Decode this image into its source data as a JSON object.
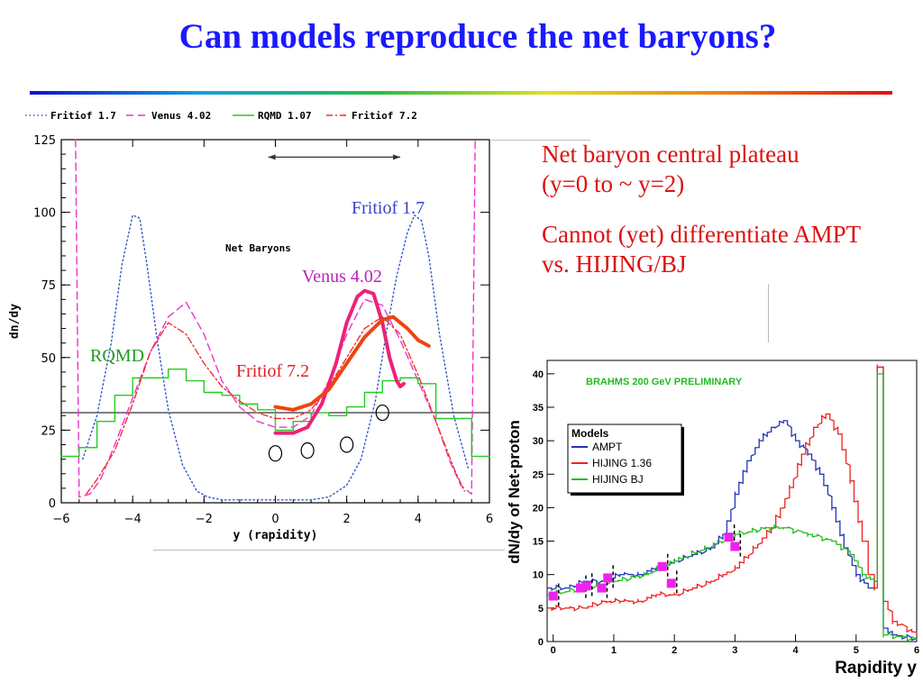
{
  "title": "Can models reproduce the net baryons?",
  "notes": [
    "Net  baryon central plateau (y=0 to ~ y=2)",
    "Cannot (yet) differentiate AMPT vs. HIJING/BJ"
  ],
  "colors": {
    "title": "#1a1aff",
    "notes": "#dd1111"
  },
  "chart_data": [
    {
      "type": "line",
      "title": "Net Baryons",
      "xlabel": "y  (rapidity)",
      "ylabel": "dn/dy",
      "xlim": [
        -6,
        6
      ],
      "ylim": [
        0,
        125
      ],
      "xticks": [
        "-6",
        "-4",
        "-2",
        "0",
        "2",
        "4",
        "6"
      ],
      "yticks": [
        "0",
        "25",
        "50",
        "75",
        "100",
        "125"
      ],
      "legend_position": "top",
      "legend": [
        {
          "name": "Fritiof 1.7",
          "color": "#3355cc",
          "style": "dotted"
        },
        {
          "name": "Venus 4.02",
          "color": "#ee33cc",
          "style": "dashed"
        },
        {
          "name": "RQMD 1.07",
          "color": "#22cc22",
          "style": "solid"
        },
        {
          "name": "Fritiof 7.2",
          "color": "#ee3333",
          "style": "dashdot"
        }
      ],
      "annotations": [
        {
          "text": "Fritiof 1.7",
          "color": "#3344cc"
        },
        {
          "text": "Venus 4.02",
          "color": "#bb22bb"
        },
        {
          "text": "RQMD",
          "color": "#229922"
        },
        {
          "text": "Fritiof 7.2",
          "color": "#dd2222"
        }
      ],
      "arrow_range": [
        -0.2,
        3.5
      ],
      "reference_level": 31,
      "series": [
        {
          "name": "Fritiof 1.7",
          "color": "#3355cc",
          "style": "dotted",
          "x": [
            -5.4,
            -5.0,
            -4.6,
            -4.3,
            -4.0,
            -3.8,
            -3.6,
            -3.3,
            -3.0,
            -2.6,
            -2.2,
            -1.9,
            -1.5,
            -1.0,
            -0.5,
            0,
            0.5,
            1.0,
            1.5,
            2.0,
            2.4,
            2.8,
            3.1,
            3.4,
            3.7,
            3.9,
            4.1,
            4.3,
            4.6,
            5.0,
            5.4
          ],
          "y": [
            15,
            30,
            55,
            82,
            99,
            98,
            82,
            55,
            32,
            13,
            4,
            2,
            1,
            1,
            1,
            1,
            1,
            1,
            2,
            6,
            15,
            35,
            58,
            78,
            93,
            99,
            97,
            85,
            58,
            30,
            12
          ]
        },
        {
          "name": "Venus 4.02",
          "color": "#ee33cc",
          "style": "dashed",
          "x": [
            -5.6,
            -5.5,
            -5.2,
            -4.9,
            -4.5,
            -4.0,
            -3.5,
            -3.0,
            -2.5,
            -2.0,
            -1.5,
            -1.0,
            -0.5,
            0,
            0.5,
            1.0,
            1.5,
            2.0,
            2.5,
            3.0,
            3.5,
            4.0,
            4.5,
            4.9,
            5.2,
            5.5,
            5.6
          ],
          "y": [
            125,
            2,
            3,
            8,
            20,
            36,
            52,
            64,
            69,
            58,
            42,
            33,
            28,
            26,
            26,
            30,
            42,
            58,
            70,
            68,
            56,
            42,
            28,
            14,
            6,
            3,
            125
          ]
        },
        {
          "name": "RQMD 1.07",
          "color": "#22cc22",
          "style": "step",
          "x": [
            -6,
            -5.5,
            -5,
            -4.5,
            -4,
            -3.5,
            -3,
            -2.5,
            -2,
            -1.5,
            -1,
            -0.5,
            0,
            0.5,
            1,
            1.5,
            2,
            2.5,
            3,
            3.5,
            4,
            4.5,
            5,
            5.5,
            6
          ],
          "y": [
            16,
            19,
            28,
            37,
            43,
            43,
            46,
            42,
            38,
            37,
            34,
            32,
            25,
            28,
            31,
            30,
            33,
            38,
            42,
            43,
            41,
            29,
            29,
            16,
            16
          ]
        },
        {
          "name": "Fritiof 7.2",
          "color": "#ee3333",
          "style": "dashdot",
          "x": [
            -5.3,
            -5.0,
            -4.5,
            -4.0,
            -3.5,
            -3.0,
            -2.5,
            -2.0,
            -1.5,
            -1.0,
            -0.5,
            0,
            0.5,
            1.0,
            1.5,
            2.0,
            2.5,
            3.0,
            3.5,
            4.0,
            4.5,
            5.0,
            5.3
          ],
          "y": [
            3,
            8,
            18,
            34,
            52,
            62,
            58,
            48,
            40,
            35,
            31,
            29,
            29,
            32,
            40,
            50,
            60,
            64,
            58,
            44,
            28,
            12,
            4
          ]
        },
        {
          "name": "overlay magenta",
          "color": "#ee2277",
          "style": "thick",
          "x": [
            0,
            0.5,
            0.9,
            1.3,
            1.7,
            2.0,
            2.3,
            2.5,
            2.75,
            3.0,
            3.2,
            3.4,
            3.5,
            3.6
          ],
          "y": [
            24,
            24,
            26,
            34,
            48,
            62,
            71,
            73,
            72,
            62,
            50,
            42,
            40,
            41
          ]
        },
        {
          "name": "overlay orange",
          "color": "#ee4411",
          "style": "thick",
          "x": [
            0,
            0.5,
            1.0,
            1.5,
            2.0,
            2.5,
            3.0,
            3.3,
            3.7,
            4.0,
            4.3
          ],
          "y": [
            33,
            32,
            34,
            39,
            48,
            57,
            63,
            64,
            60,
            56,
            54
          ]
        }
      ],
      "data_points": {
        "x": [
          0.0,
          0.9,
          2.0,
          3.0
        ],
        "y": [
          17,
          18,
          20,
          31
        ],
        "marker": "open-circle"
      }
    },
    {
      "type": "line",
      "title": "BRAHMS 200 GeV PRELIMINARY",
      "xlabel": "Rapidity y",
      "ylabel": "dN/dy of Net-proton",
      "xlim": [
        -0.1,
        6
      ],
      "ylim": [
        0,
        42
      ],
      "xticks": [
        "0",
        "1",
        "2",
        "3",
        "4",
        "5",
        "6"
      ],
      "yticks": [
        "0",
        "5",
        "10",
        "15",
        "20",
        "25",
        "30",
        "35",
        "40"
      ],
      "legend_title": "Models",
      "legend_position": "upper-left",
      "legend": [
        {
          "name": "AMPT",
          "color": "#2233bb"
        },
        {
          "name": "HIJING 1.36",
          "color": "#ee2222"
        },
        {
          "name": "HIJING BJ",
          "color": "#22bb22"
        }
      ],
      "series": [
        {
          "name": "AMPT",
          "color": "#2233bb",
          "x": [
            -0.1,
            0.2,
            0.5,
            0.8,
            1.1,
            1.4,
            1.7,
            2.0,
            2.3,
            2.6,
            2.8,
            3.0,
            3.2,
            3.4,
            3.6,
            3.8,
            4.0,
            4.2,
            4.4,
            4.6,
            4.8,
            5.0,
            5.2,
            5.3,
            5.35,
            5.45,
            5.6,
            6.0
          ],
          "y": [
            8,
            8,
            9,
            9,
            10,
            10,
            11,
            12,
            13,
            14,
            16,
            22,
            27,
            30,
            32,
            33,
            30,
            28,
            25,
            20,
            14,
            10,
            8,
            9,
            41,
            2,
            1,
            0.3
          ]
        },
        {
          "name": "HIJING 1.36",
          "color": "#ee2222",
          "x": [
            -0.1,
            0.2,
            0.5,
            0.8,
            1.1,
            1.4,
            1.7,
            2.0,
            2.3,
            2.6,
            2.8,
            3.0,
            3.3,
            3.6,
            3.9,
            4.1,
            4.3,
            4.5,
            4.7,
            4.9,
            5.1,
            5.2,
            5.3,
            5.35,
            5.45,
            5.6,
            6.0
          ],
          "y": [
            5,
            5,
            5,
            6,
            6,
            6,
            7,
            7,
            8,
            9,
            10,
            11,
            14,
            17,
            23,
            28,
            32,
            34,
            31,
            24,
            15,
            10,
            8,
            41,
            6,
            3,
            1
          ]
        },
        {
          "name": "HIJING BJ",
          "color": "#22bb22",
          "x": [
            -0.1,
            0.5,
            1.0,
            1.5,
            2.0,
            2.5,
            3.0,
            3.5,
            3.8,
            4.2,
            4.6,
            4.9,
            5.1,
            5.3,
            5.35,
            5.45,
            6.0
          ],
          "y": [
            7,
            8,
            9,
            10,
            12,
            14,
            16,
            17,
            17,
            16,
            15,
            13,
            10,
            9,
            40,
            1,
            0.3
          ]
        }
      ],
      "data_points": {
        "x": [
          0.0,
          0.45,
          0.55,
          0.8,
          0.9,
          1.8,
          1.95,
          2.9,
          3.0
        ],
        "y": [
          6.8,
          8.0,
          8.3,
          8.0,
          9.5,
          11.2,
          8.7,
          15.6,
          14.2
        ],
        "marker": "filled-square",
        "color": "#ee22ee"
      }
    }
  ]
}
